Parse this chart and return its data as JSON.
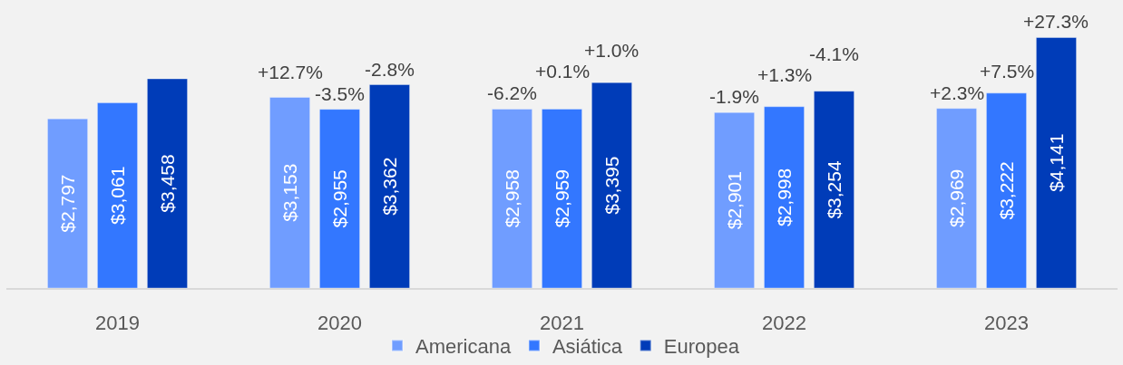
{
  "chart_data": {
    "type": "bar",
    "categories": [
      "2019",
      "2020",
      "2021",
      "2022",
      "2023"
    ],
    "series": [
      {
        "name": "Americana",
        "color": "#709dff",
        "values": [
          2797,
          3153,
          2958,
          2901,
          2969
        ],
        "value_labels": [
          "$2,797",
          "$3,153",
          "$2,958",
          "$2,901",
          "$2,969"
        ]
      },
      {
        "name": "Asiática",
        "color": "#3377ff",
        "values": [
          3061,
          2955,
          2959,
          2998,
          3222
        ],
        "value_labels": [
          "$3,061",
          "$2,955",
          "$2,959",
          "$2,998",
          "$3,222"
        ]
      },
      {
        "name": "Europea",
        "color": "#003cb8",
        "values": [
          3458,
          3362,
          3395,
          3254,
          4141
        ],
        "value_labels": [
          "$3,458",
          "$3,362",
          "$3,395",
          "$3,254",
          "$4,141"
        ]
      }
    ],
    "annotations": [
      {
        "text": "+12.7%",
        "y": 3153
      },
      {
        "text": "-3.5%",
        "y": 2955
      },
      {
        "text": "-2.8%",
        "y": 3362
      },
      {
        "text": "-6.2%",
        "y": 2958
      },
      {
        "text": "+0.1%",
        "y": 2959
      },
      {
        "text": "+1.0%",
        "y": 3395
      },
      {
        "text": "-1.9%",
        "y": 2901
      },
      {
        "text": "+1.3%",
        "y": 2998
      },
      {
        "text": "-4.1%",
        "y": 3254
      },
      {
        "text": "+2.3%",
        "y": 2969
      },
      {
        "text": "+7.5%",
        "y": 3222
      },
      {
        "text": "+27.3%",
        "y": 4141
      }
    ],
    "legend": "bottom",
    "tick_labels": "x"
  }
}
